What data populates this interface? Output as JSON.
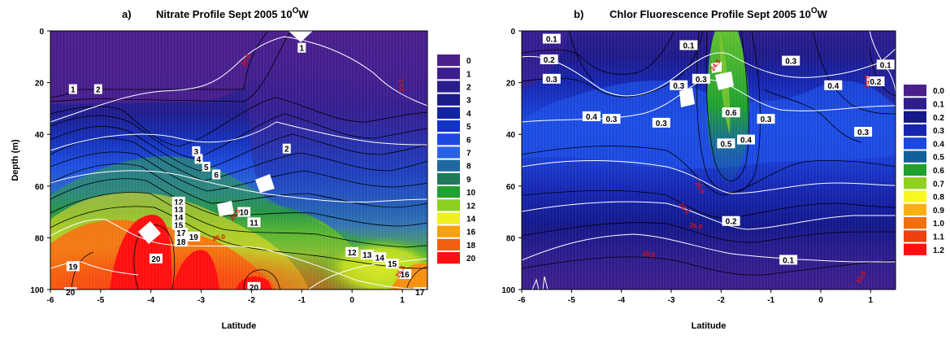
{
  "chart_data": [
    {
      "type": "heatmap",
      "panel_label": "a)",
      "title": "Nitrate Profile Sept 2005 10",
      "title_sup": "O",
      "title_suffix": "W",
      "xlabel": "Latitude",
      "ylabel": "Depth (m)",
      "xlim": [
        -6,
        1.5
      ],
      "ylim": [
        100,
        0
      ],
      "x_ticks": [
        "-6",
        "-5",
        "-4",
        "-3",
        "-2",
        "-1",
        "0",
        "1"
      ],
      "y_ticks": [
        "0",
        "20",
        "40",
        "60",
        "80",
        "100"
      ],
      "colorbar": {
        "labels": [
          "0",
          "1",
          "2",
          "3",
          "4",
          "5",
          "6",
          "7",
          "8",
          "9",
          "10",
          "12",
          "14",
          "16",
          "18",
          "20"
        ],
        "colors": [
          "#4a1f8c",
          "#3c1e90",
          "#2a1d90",
          "#1a1c8c",
          "#1223a6",
          "#1234c4",
          "#1f48e0",
          "#2a62e6",
          "#1e6aa0",
          "#1e7a5a",
          "#20a030",
          "#8cd020",
          "#f0f020",
          "#f8a010",
          "#f06010",
          "#ff1010"
        ]
      },
      "contour_labels": [
        {
          "text": "1",
          "x": -1.0,
          "y": 6.5
        },
        {
          "text": "1",
          "x": -5.55,
          "y": 22.5
        },
        {
          "text": "2",
          "x": -5.05,
          "y": 22.5
        },
        {
          "text": "2",
          "x": -1.3,
          "y": 45.5
        },
        {
          "text": "3",
          "x": -3.1,
          "y": 46.5
        },
        {
          "text": "4",
          "x": -3.05,
          "y": 49.5
        },
        {
          "text": "5",
          "x": -2.9,
          "y": 52.5
        },
        {
          "text": "6",
          "x": -2.7,
          "y": 55.5
        },
        {
          "text": "10",
          "x": -2.15,
          "y": 70
        },
        {
          "text": "11",
          "x": -1.95,
          "y": 74
        },
        {
          "text": "12",
          "x": -3.45,
          "y": 66
        },
        {
          "text": "13",
          "x": -3.45,
          "y": 69
        },
        {
          "text": "14",
          "x": -3.45,
          "y": 72
        },
        {
          "text": "15",
          "x": -3.45,
          "y": 75
        },
        {
          "text": "17",
          "x": -3.4,
          "y": 78
        },
        {
          "text": "19",
          "x": -3.15,
          "y": 79.5
        },
        {
          "text": "18",
          "x": -3.4,
          "y": 81.5
        },
        {
          "text": "12",
          "x": 0.0,
          "y": 85.5
        },
        {
          "text": "13",
          "x": 0.3,
          "y": 86.5
        },
        {
          "text": "14",
          "x": 0.55,
          "y": 87.5
        },
        {
          "text": "15",
          "x": 0.8,
          "y": 90
        },
        {
          "text": "16",
          "x": 1.05,
          "y": 94
        },
        {
          "text": "19",
          "x": -5.55,
          "y": 91
        },
        {
          "text": "20",
          "x": -3.9,
          "y": 88
        },
        {
          "text": "20",
          "x": -1.95,
          "y": 99
        },
        {
          "text": "20",
          "x": -5.6,
          "y": 101
        },
        {
          "text": "17",
          "x": 1.35,
          "y": 101
        }
      ],
      "density_labels": [
        "24.0",
        "24.5",
        "26.0",
        "26.5",
        "23.5"
      ]
    },
    {
      "type": "heatmap",
      "panel_label": "b)",
      "title": "Chlor Fluorescence Profile Sept 2005 10",
      "title_sup": "O",
      "title_suffix": "W",
      "xlabel": "Latitude",
      "xlim": [
        -6,
        1.5
      ],
      "ylim": [
        100,
        0
      ],
      "x_ticks": [
        "-6",
        "-5",
        "-4",
        "-3",
        "-2",
        "-1",
        "0",
        "1"
      ],
      "y_ticks": [
        "0",
        "20",
        "40",
        "60",
        "80",
        "100"
      ],
      "colorbar": {
        "labels": [
          "0.0",
          "0.1",
          "0.2",
          "0.3",
          "0.4",
          "0.5",
          "0.6",
          "0.7",
          "0.8",
          "0.9",
          "1.0",
          "1.1",
          "1.2"
        ],
        "colors": [
          "#4a1f8c",
          "#2e1d8c",
          "#14188a",
          "#1626b0",
          "#1a48e0",
          "#10609a",
          "#20a030",
          "#90d020",
          "#f8f820",
          "#f8b010",
          "#f07010",
          "#f04010",
          "#ff1010"
        ]
      },
      "contour_labels": [
        {
          "text": "0.1",
          "x": -5.4,
          "y": 3
        },
        {
          "text": "0.2",
          "x": -5.45,
          "y": 11
        },
        {
          "text": "0.3",
          "x": -5.4,
          "y": 18.5
        },
        {
          "text": "0.1",
          "x": -2.65,
          "y": 5.5
        },
        {
          "text": "0.3",
          "x": -0.6,
          "y": 11.5
        },
        {
          "text": "0.1",
          "x": 1.3,
          "y": 13
        },
        {
          "text": "0.3",
          "x": -2.85,
          "y": 21
        },
        {
          "text": "0.3",
          "x": -2.4,
          "y": 18.5
        },
        {
          "text": "0.4",
          "x": 0.25,
          "y": 21
        },
        {
          "text": "0.2",
          "x": 1.1,
          "y": 19.5
        },
        {
          "text": "0.6",
          "x": -1.8,
          "y": 31.5
        },
        {
          "text": "0.4",
          "x": -4.6,
          "y": 33
        },
        {
          "text": "0.3",
          "x": -4.2,
          "y": 34
        },
        {
          "text": "0.3",
          "x": -3.2,
          "y": 35.5
        },
        {
          "text": "0.3",
          "x": -1.1,
          "y": 34
        },
        {
          "text": "0.3",
          "x": 0.85,
          "y": 39
        },
        {
          "text": "0.5",
          "x": -1.9,
          "y": 43.5
        },
        {
          "text": "0.4",
          "x": -1.5,
          "y": 42
        },
        {
          "text": "0.2",
          "x": -1.8,
          "y": 73.5
        },
        {
          "text": "0.1",
          "x": -0.65,
          "y": 88.5
        }
      ],
      "density_labels": [
        "24.5",
        "25.0",
        "26.0",
        "26.5",
        "24.0",
        "23.5",
        "22.5"
      ]
    }
  ]
}
